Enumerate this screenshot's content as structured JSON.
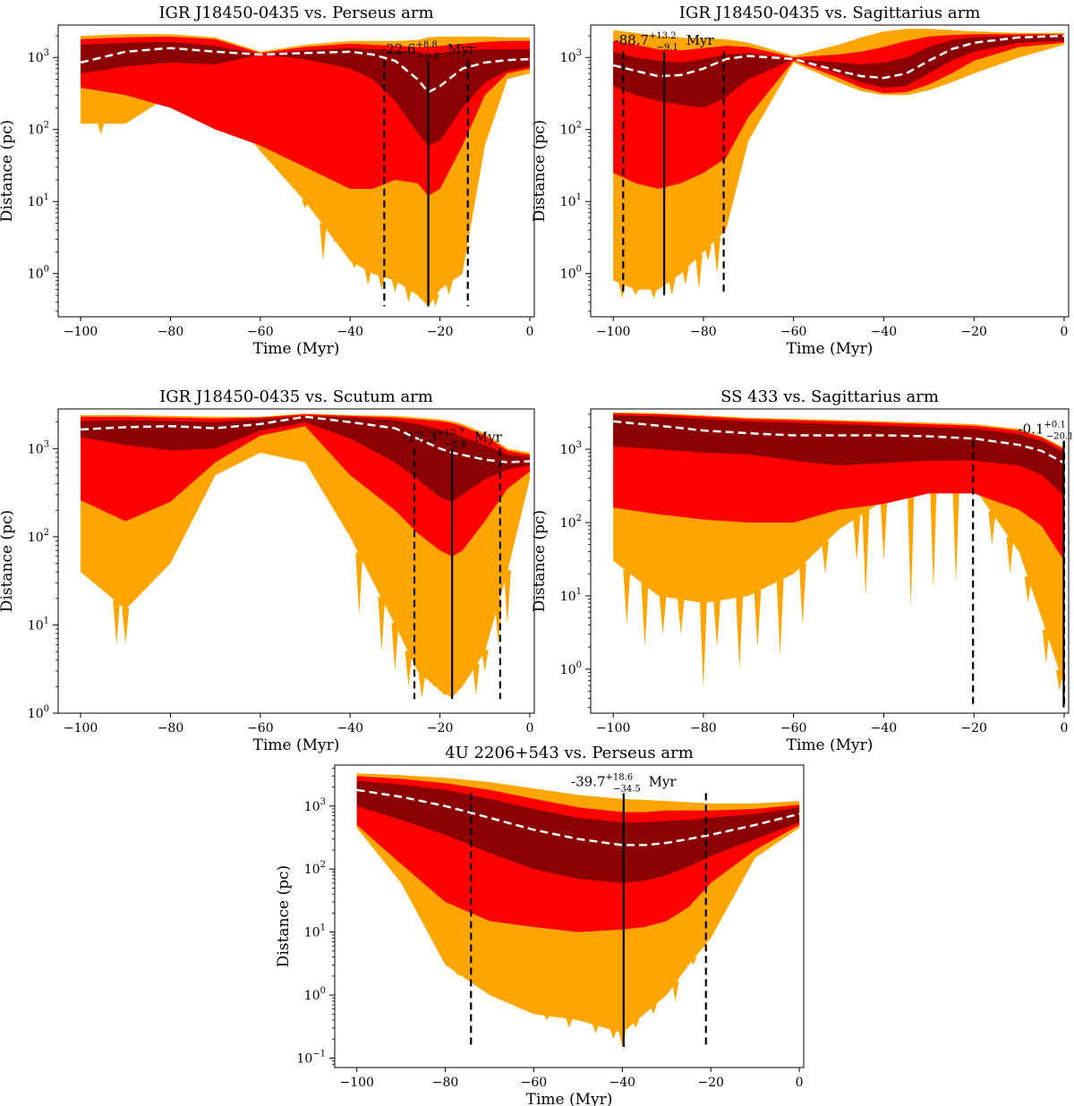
{
  "figure": {
    "colors": {
      "inner_band": "#8b0000",
      "middle_band": "#ff0000",
      "outer_band": "#ffa500",
      "median_line": "#ffffff",
      "marker_line": "#000000"
    }
  },
  "chart_data": [
    {
      "type": "area",
      "title": "IGR J18450-0435 vs. Perseus arm",
      "xlabel": "Time (Myr)",
      "ylabel": "Distance (pc)",
      "xlim": [
        -105,
        1
      ],
      "ylim_log10": [
        -0.6,
        3.45
      ],
      "xticks": [
        -100,
        -80,
        -60,
        -40,
        -20,
        0
      ],
      "xtick_labels": [
        "−100",
        "−80",
        "−60",
        "−40",
        "−20",
        "0"
      ],
      "yticks_exp": [
        "0",
        "1",
        "2",
        "3"
      ],
      "annotation": {
        "value": "-22.6",
        "upper": "+8.8",
        "lower": "−9.8",
        "unit": "Myr"
      },
      "closest_time": -22.6,
      "ci_low": -32.4,
      "ci_high": -13.8,
      "marker_top": 900,
      "marker_bottom": 0.35,
      "time": [
        -100,
        -90,
        -80,
        -70,
        -60,
        -50,
        -40,
        -35,
        -30,
        -25,
        -22.6,
        -20,
        -15,
        -10,
        -5,
        0
      ],
      "median": [
        850,
        1200,
        1350,
        1200,
        1100,
        1150,
        1200,
        1100,
        900,
        500,
        330,
        400,
        700,
        850,
        920,
        950
      ],
      "band_inner": {
        "low": [
          600,
          750,
          850,
          800,
          1100,
          950,
          700,
          500,
          250,
          90,
          60,
          70,
          200,
          450,
          650,
          750
        ],
        "high": [
          1500,
          1600,
          1650,
          1450,
          1100,
          1250,
          1350,
          1300,
          1250,
          1200,
          1100,
          1150,
          1250,
          1300,
          1300,
          1300
        ]
      },
      "band_middle": {
        "low": [
          380,
          300,
          200,
          100,
          60,
          30,
          15,
          15,
          20,
          18,
          12,
          15,
          60,
          300,
          600,
          700
        ],
        "high": [
          1800,
          1900,
          1950,
          1800,
          1150,
          1400,
          1550,
          1500,
          1450,
          1400,
          1400,
          1450,
          1550,
          1650,
          1700,
          1700
        ]
      },
      "band_outer": {
        "low": [
          120,
          120,
          300,
          300,
          50,
          10,
          1.5,
          1,
          0.8,
          0.5,
          0.35,
          0.6,
          1,
          60,
          500,
          600
        ],
        "high": [
          2000,
          2100,
          2100,
          1900,
          1200,
          1500,
          1700,
          1700,
          1700,
          1750,
          1900,
          1950,
          1950,
          1950,
          1900,
          1900
        ]
      },
      "spikes": [
        {
          "t": -95.5,
          "v": 85
        },
        {
          "t": -50,
          "v": 8
        },
        {
          "t": -46,
          "v": 1.5
        },
        {
          "t": -43,
          "v": 4
        },
        {
          "t": -39,
          "v": 1.2
        },
        {
          "t": -36,
          "v": 0.7
        },
        {
          "t": -33,
          "v": 0.6
        },
        {
          "t": -30,
          "v": 0.55
        },
        {
          "t": -27,
          "v": 0.4
        },
        {
          "t": -24,
          "v": 0.5
        },
        {
          "t": -21,
          "v": 0.35
        },
        {
          "t": -18,
          "v": 0.5
        },
        {
          "t": -16,
          "v": 0.9
        },
        {
          "t": -14,
          "v": 2
        }
      ]
    },
    {
      "type": "area",
      "title": "IGR J18450-0435 vs. Sagittarius arm",
      "xlabel": "Time (Myr)",
      "ylabel": "Distance (pc)",
      "xlim": [
        -105,
        1
      ],
      "ylim_log10": [
        -0.6,
        3.45
      ],
      "xticks": [
        -100,
        -80,
        -60,
        -40,
        -20,
        0
      ],
      "xtick_labels": [
        "−100",
        "−80",
        "−60",
        "−40",
        "−20",
        "0"
      ],
      "yticks_exp": [
        "0",
        "1",
        "2",
        "3"
      ],
      "annotation": {
        "value": "-88.7",
        "upper": "+13.2",
        "lower": "−9.1",
        "unit": "Myr"
      },
      "closest_time": -88.7,
      "ci_low": -97.8,
      "ci_high": -75.5,
      "marker_top": 1200,
      "marker_bottom": 0.5,
      "time": [
        -100,
        -95,
        -90,
        -85,
        -80,
        -75,
        -70,
        -60,
        -50,
        -45,
        -40,
        -35,
        -30,
        -25,
        -20,
        -10,
        0
      ],
      "median": [
        780,
        650,
        550,
        570,
        700,
        950,
        1050,
        950,
        650,
        550,
        520,
        600,
        900,
        1300,
        1600,
        1900,
        2000
      ],
      "band_inner": {
        "low": [
          400,
          300,
          250,
          220,
          200,
          280,
          500,
          950,
          600,
          450,
          380,
          400,
          600,
          900,
          1200,
          1600,
          1700
        ],
        "high": [
          1200,
          1000,
          900,
          850,
          950,
          1100,
          1150,
          950,
          850,
          800,
          850,
          1000,
          1400,
          1750,
          1900,
          2000,
          2050
        ]
      },
      "band_middle": {
        "low": [
          25,
          18,
          15,
          18,
          25,
          40,
          150,
          900,
          520,
          380,
          320,
          330,
          420,
          600,
          900,
          1400,
          1600
        ],
        "high": [
          1700,
          1500,
          1300,
          1250,
          1350,
          1450,
          1400,
          1000,
          1100,
          1200,
          1400,
          1700,
          1950,
          2050,
          2100,
          2100,
          2100
        ]
      },
      "band_outer": {
        "low": [
          0.8,
          0.6,
          0.6,
          1,
          2,
          4,
          70,
          850,
          450,
          340,
          300,
          300,
          350,
          450,
          600,
          1000,
          1500
        ],
        "high": [
          2400,
          2200,
          2000,
          1900,
          1850,
          1800,
          1600,
          1050,
          1500,
          1900,
          2300,
          2500,
          2500,
          2400,
          2300,
          2200,
          2200
        ]
      },
      "spikes": [
        {
          "t": -98,
          "v": 0.45
        },
        {
          "t": -95,
          "v": 0.5
        },
        {
          "t": -93,
          "v": 0.6
        },
        {
          "t": -91,
          "v": 0.45
        },
        {
          "t": -87,
          "v": 0.5
        },
        {
          "t": -84,
          "v": 0.7
        },
        {
          "t": -81,
          "v": 0.6
        },
        {
          "t": -79,
          "v": 1.5
        },
        {
          "t": -77,
          "v": 1
        }
      ]
    },
    {
      "type": "area",
      "title": "IGR J18450-0435 vs. Scutum arm",
      "xlabel": "Time (Myr)",
      "ylabel": "Distance (pc)",
      "xlim": [
        -105,
        1
      ],
      "ylim_log10": [
        0,
        3.45
      ],
      "xticks": [
        -100,
        -80,
        -60,
        -40,
        -20,
        0
      ],
      "xtick_labels": [
        "−100",
        "−80",
        "−60",
        "−40",
        "−20",
        "0"
      ],
      "yticks_exp": [
        "0",
        "1",
        "2",
        "3"
      ],
      "annotation": {
        "value": "-17.3",
        "upper": "+10.7",
        "lower": "−8.4",
        "unit": "Myr"
      },
      "closest_time": -17.3,
      "ci_low": -25.7,
      "ci_high": -6.6,
      "marker_top": 1000,
      "marker_bottom": 1.45,
      "time": [
        -100,
        -90,
        -80,
        -70,
        -60,
        -50,
        -40,
        -30,
        -25,
        -20,
        -17.3,
        -15,
        -10,
        -5,
        0
      ],
      "median": [
        1650,
        1750,
        1800,
        1700,
        1900,
        2300,
        2000,
        1700,
        1300,
        1000,
        900,
        850,
        750,
        700,
        720
      ],
      "band_inner": {
        "low": [
          1350,
          1100,
          950,
          1000,
          1600,
          2000,
          1300,
          700,
          450,
          280,
          250,
          300,
          450,
          580,
          650
        ],
        "high": [
          2050,
          2100,
          2050,
          2000,
          2150,
          2350,
          2250,
          2100,
          1900,
          1650,
          1500,
          1350,
          1100,
          850,
          800
        ]
      },
      "band_middle": {
        "low": [
          260,
          150,
          250,
          700,
          1400,
          1800,
          500,
          200,
          110,
          70,
          60,
          70,
          150,
          350,
          550
        ],
        "high": [
          2300,
          2300,
          2250,
          2200,
          2250,
          2450,
          2350,
          2250,
          2150,
          2050,
          1950,
          1800,
          1400,
          950,
          850
        ]
      },
      "band_outer": {
        "low": [
          40,
          15,
          50,
          500,
          900,
          700,
          100,
          10,
          3,
          1.8,
          1.5,
          2,
          5,
          40,
          450
        ],
        "high": [
          2400,
          2400,
          2350,
          2300,
          2300,
          2500,
          2400,
          2350,
          2250,
          2150,
          2050,
          1900,
          1500,
          1000,
          900
        ]
      },
      "spikes": [
        {
          "t": -92,
          "v": 6
        },
        {
          "t": -90,
          "v": 6
        },
        {
          "t": -38,
          "v": 13
        },
        {
          "t": -33,
          "v": 5
        },
        {
          "t": -30,
          "v": 3
        },
        {
          "t": -27,
          "v": 2
        },
        {
          "t": -24,
          "v": 1.5
        },
        {
          "t": -21,
          "v": 2
        },
        {
          "t": -19,
          "v": 1.6
        },
        {
          "t": -14,
          "v": 2.5
        },
        {
          "t": -12,
          "v": 1.6
        },
        {
          "t": -10,
          "v": 3
        },
        {
          "t": -7,
          "v": 6
        },
        {
          "t": -5,
          "v": 10
        }
      ]
    },
    {
      "type": "area",
      "title": "SS 433 vs. Sagittarius arm",
      "xlabel": "Time (Myr)",
      "ylabel": "Distance (pc)",
      "xlim": [
        -105,
        1
      ],
      "ylim_log10": [
        -0.6,
        3.55
      ],
      "xticks": [
        -100,
        -80,
        -60,
        -40,
        -20,
        0
      ],
      "xtick_labels": [
        "−100",
        "−80",
        "−60",
        "−40",
        "−20",
        "0"
      ],
      "yticks_exp": [
        "0",
        "1",
        "2",
        "3"
      ],
      "annotation": {
        "value": "-0.1",
        "upper": "+0.1",
        "lower": "−20.1",
        "unit": "Myr"
      },
      "closest_time": -0.1,
      "ci_low": -20.2,
      "ci_high": 0,
      "marker_top": 1300,
      "marker_bottom": 0.3,
      "time": [
        -100,
        -90,
        -80,
        -70,
        -60,
        -50,
        -40,
        -30,
        -20,
        -10,
        -5,
        0
      ],
      "median": [
        2400,
        2100,
        1800,
        1650,
        1550,
        1550,
        1550,
        1500,
        1400,
        1150,
        950,
        650
      ],
      "band_inner": {
        "low": [
          1100,
          1000,
          900,
          850,
          700,
          600,
          650,
          700,
          700,
          600,
          450,
          230
        ],
        "high": [
          2900,
          2800,
          2600,
          2400,
          2300,
          2200,
          2100,
          2000,
          1900,
          1600,
          1300,
          900
        ]
      },
      "band_middle": {
        "low": [
          160,
          130,
          110,
          100,
          100,
          150,
          180,
          250,
          250,
          150,
          90,
          30
        ],
        "high": [
          3100,
          3000,
          2800,
          2600,
          2500,
          2400,
          2300,
          2200,
          2100,
          1800,
          1450,
          1000
        ]
      },
      "band_outer": {
        "low": [
          30,
          10,
          8,
          10,
          20,
          80,
          200,
          400,
          300,
          40,
          5,
          0.6
        ],
        "high": [
          3200,
          3100,
          2900,
          2700,
          2600,
          2500,
          2400,
          2300,
          2200,
          1900,
          1500,
          1050
        ]
      },
      "spikes": [
        {
          "t": -97,
          "v": 4
        },
        {
          "t": -93,
          "v": 2
        },
        {
          "t": -89,
          "v": 3
        },
        {
          "t": -85,
          "v": 3
        },
        {
          "t": -80,
          "v": 0.55
        },
        {
          "t": -77,
          "v": 2
        },
        {
          "t": -72,
          "v": 1
        },
        {
          "t": -68,
          "v": 2
        },
        {
          "t": -63,
          "v": 1.5
        },
        {
          "t": -58,
          "v": 4
        },
        {
          "t": -53,
          "v": 20
        },
        {
          "t": -46,
          "v": 30
        },
        {
          "t": -44,
          "v": 10
        },
        {
          "t": -40,
          "v": 30
        },
        {
          "t": -34,
          "v": 7
        },
        {
          "t": -29,
          "v": 12
        },
        {
          "t": -24,
          "v": 15
        },
        {
          "t": -16,
          "v": 50
        },
        {
          "t": -12,
          "v": 20
        },
        {
          "t": -8,
          "v": 8
        },
        {
          "t": -4,
          "v": 1.2
        },
        {
          "t": -1,
          "v": 0.5
        }
      ]
    },
    {
      "type": "area",
      "title": "4U 2206+543 vs. Perseus arm",
      "xlabel": "Time (Myr)",
      "ylabel": "Distance (pc)",
      "xlim": [
        -105,
        1
      ],
      "ylim_log10": [
        -1.15,
        3.65
      ],
      "xticks": [
        -100,
        -80,
        -60,
        -40,
        -20,
        0
      ],
      "xtick_labels": [
        "−100",
        "−80",
        "−60",
        "−40",
        "−20",
        "0"
      ],
      "yticks_exp": [
        "−1",
        "0",
        "1",
        "2",
        "3"
      ],
      "annotation": {
        "value": "-39.7",
        "upper": "+18.6",
        "lower": "−34.5",
        "unit": "Myr"
      },
      "closest_time": -39.7,
      "ci_low": -74.2,
      "ci_high": -21.1,
      "marker_top": 1600,
      "marker_bottom": 0.15,
      "time": [
        -100,
        -90,
        -80,
        -70,
        -60,
        -50,
        -40,
        -35,
        -30,
        -25,
        -20,
        -10,
        0
      ],
      "median": [
        1800,
        1400,
        1000,
        650,
        420,
        300,
        240,
        240,
        260,
        300,
        350,
        500,
        750
      ],
      "band_inner": {
        "low": [
          1000,
          600,
          350,
          180,
          100,
          70,
          60,
          65,
          80,
          110,
          160,
          300,
          550
        ],
        "high": [
          2500,
          2200,
          1800,
          1300,
          900,
          650,
          550,
          550,
          580,
          600,
          650,
          750,
          950
        ]
      },
      "band_middle": {
        "low": [
          500,
          120,
          30,
          15,
          12,
          10,
          11,
          12,
          15,
          25,
          60,
          200,
          500
        ],
        "high": [
          3000,
          2700,
          2300,
          1800,
          1300,
          950,
          800,
          800,
          850,
          850,
          850,
          900,
          1050
        ]
      },
      "band_outer": {
        "low": [
          450,
          60,
          3,
          1,
          0.5,
          0.4,
          0.25,
          0.5,
          1,
          3,
          8,
          150,
          450
        ],
        "high": [
          3300,
          3100,
          2800,
          2400,
          1900,
          1500,
          1300,
          1250,
          1200,
          1150,
          1100,
          1100,
          1200
        ]
      },
      "spikes": [
        {
          "t": -77,
          "v": 2
        },
        {
          "t": -74,
          "v": 8
        },
        {
          "t": -68,
          "v": 1
        },
        {
          "t": -63,
          "v": 0.6
        },
        {
          "t": -57,
          "v": 0.4
        },
        {
          "t": -52,
          "v": 0.3
        },
        {
          "t": -46,
          "v": 0.25
        },
        {
          "t": -42,
          "v": 0.2
        },
        {
          "t": -40,
          "v": 0.15
        },
        {
          "t": -37,
          "v": 0.3
        },
        {
          "t": -33,
          "v": 0.5
        },
        {
          "t": -28,
          "v": 0.8
        },
        {
          "t": -24,
          "v": 3
        },
        {
          "t": -22,
          "v": 8
        }
      ]
    }
  ]
}
